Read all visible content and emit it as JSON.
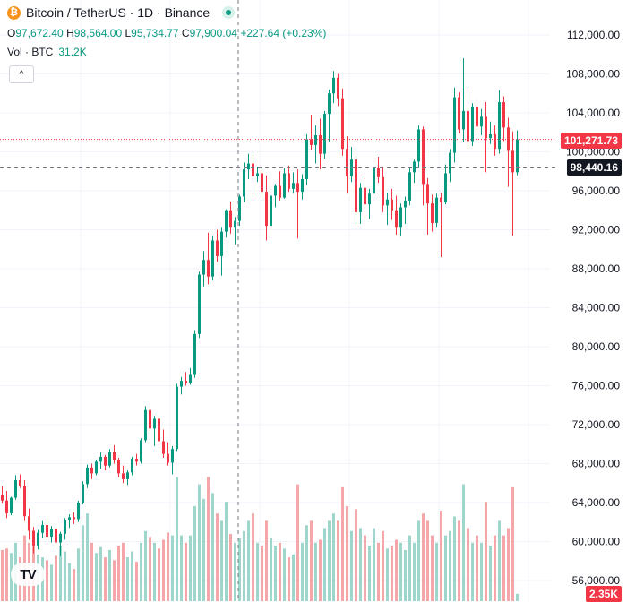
{
  "header": {
    "title": "Bitcoin / TetherUS · 1D · Binance",
    "coin_icon": "bitcoin-icon"
  },
  "ohlc": {
    "o_label": "O",
    "o": "97,672.40",
    "h_label": "H",
    "h": "98,564.00",
    "l_label": "L",
    "l": "95,734.77",
    "c_label": "C",
    "c": "97,900.04",
    "change": "+227.64 (+0.23%)"
  },
  "volume": {
    "label": "Vol · BTC",
    "value": "31.2K"
  },
  "collapse_icon": "chevron-up-icon",
  "logo": "TV",
  "colors": {
    "up": "#089981",
    "down": "#f23645",
    "up_vol": "#9fd6cc",
    "down_vol": "#f5a6a9",
    "grid": "#f0f3fa"
  },
  "price_tags": {
    "last_price": "101,271.73",
    "crosshair_price": "98,440.16",
    "volume": "2.35K"
  },
  "chart_data": {
    "type": "candlestick",
    "title": "Bitcoin / TetherUS · 1D · Binance",
    "y_ticks": [
      "112,000.00",
      "108,000.00",
      "104,000.00",
      "100,000.00",
      "96,000.00",
      "92,000.00",
      "88,000.00",
      "84,000.00",
      "80,000.00",
      "76,000.00",
      "72,000.00",
      "68,000.00",
      "64,000.00",
      "60,000.00",
      "56,000.00"
    ],
    "ylim": [
      55000,
      113000
    ],
    "last_price": 101271.73,
    "crosshair_price": 98440.16,
    "candles": [
      [
        64800,
        65700,
        63900,
        64200,
        0.35
      ],
      [
        64200,
        65200,
        62400,
        62900,
        0.36
      ],
      [
        62900,
        64600,
        62700,
        64500,
        0.33
      ],
      [
        64500,
        66800,
        64300,
        66300,
        0.4
      ],
      [
        66300,
        66900,
        65500,
        65700,
        0.3
      ],
      [
        65700,
        66300,
        62100,
        62600,
        0.45
      ],
      [
        62600,
        63400,
        60200,
        61100,
        0.4
      ],
      [
        61100,
        61500,
        58800,
        59600,
        0.48
      ],
      [
        59600,
        61200,
        59200,
        60900,
        0.32
      ],
      [
        60900,
        62100,
        60400,
        61700,
        0.3
      ],
      [
        61700,
        62400,
        60300,
        60500,
        0.28
      ],
      [
        60500,
        61600,
        59900,
        61300,
        0.25
      ],
      [
        61300,
        61500,
        59500,
        59900,
        0.31
      ],
      [
        59900,
        61000,
        58500,
        60800,
        0.38
      ],
      [
        60800,
        62400,
        60200,
        62200,
        0.34
      ],
      [
        62200,
        62800,
        61400,
        62500,
        0.26
      ],
      [
        62500,
        63000,
        61800,
        62300,
        0.22
      ],
      [
        62300,
        64200,
        62000,
        64000,
        0.36
      ],
      [
        64000,
        66200,
        63800,
        65900,
        0.52
      ],
      [
        65900,
        67900,
        65500,
        67600,
        0.6
      ],
      [
        67600,
        68000,
        66400,
        67000,
        0.4
      ],
      [
        67000,
        68400,
        66800,
        68200,
        0.33
      ],
      [
        68200,
        69200,
        67500,
        68700,
        0.37
      ],
      [
        68700,
        68900,
        67300,
        67800,
        0.3
      ],
      [
        67800,
        69500,
        67600,
        69200,
        0.35
      ],
      [
        69200,
        69900,
        68000,
        68400,
        0.28
      ],
      [
        68400,
        68600,
        66600,
        67000,
        0.38
      ],
      [
        67000,
        67800,
        66000,
        66400,
        0.4
      ],
      [
        66400,
        67300,
        65800,
        67100,
        0.3
      ],
      [
        67100,
        68700,
        66800,
        68500,
        0.34
      ],
      [
        68500,
        69000,
        67800,
        68200,
        0.27
      ],
      [
        68200,
        70600,
        68000,
        70400,
        0.4
      ],
      [
        70400,
        73900,
        70200,
        73500,
        0.48
      ],
      [
        73500,
        73800,
        71300,
        71600,
        0.44
      ],
      [
        71600,
        72900,
        69800,
        72600,
        0.4
      ],
      [
        72600,
        72800,
        69900,
        70300,
        0.36
      ],
      [
        70300,
        71500,
        68600,
        69000,
        0.42
      ],
      [
        69000,
        70200,
        67800,
        68100,
        0.47
      ],
      [
        68100,
        69800,
        66900,
        69500,
        0.45
      ],
      [
        69500,
        76200,
        69300,
        75900,
        0.85
      ],
      [
        75900,
        76900,
        75100,
        76500,
        0.45
      ],
      [
        76500,
        77400,
        76000,
        76300,
        0.4
      ],
      [
        76300,
        77800,
        76100,
        77100,
        0.45
      ],
      [
        77100,
        81700,
        76800,
        81300,
        0.65
      ],
      [
        81300,
        87700,
        80900,
        87400,
        0.8
      ],
      [
        87400,
        89800,
        86200,
        88900,
        0.7
      ],
      [
        88900,
        91700,
        86400,
        87200,
        0.85
      ],
      [
        87200,
        91400,
        86800,
        90900,
        0.74
      ],
      [
        90900,
        92000,
        88700,
        89300,
        0.6
      ],
      [
        89300,
        92300,
        87300,
        91800,
        0.55
      ],
      [
        91800,
        94100,
        91200,
        94000,
        0.68
      ],
      [
        94000,
        94900,
        91600,
        92300,
        0.46
      ],
      [
        92300,
        93300,
        90500,
        92900,
        0.4
      ],
      [
        92900,
        95600,
        92400,
        95400,
        0.43
      ],
      [
        95400,
        98900,
        94800,
        98200,
        0.48
      ],
      [
        98200,
        99800,
        97200,
        98800,
        0.55
      ],
      [
        98800,
        99700,
        95600,
        97500,
        0.6
      ],
      [
        97500,
        98500,
        96900,
        97800,
        0.4
      ],
      [
        97800,
        98200,
        95300,
        95900,
        0.38
      ],
      [
        95900,
        97600,
        90900,
        92400,
        0.55
      ],
      [
        92400,
        95800,
        91100,
        95500,
        0.43
      ],
      [
        95500,
        96700,
        94300,
        96500,
        0.38
      ],
      [
        96500,
        98000,
        95000,
        95300,
        0.4
      ],
      [
        95300,
        98300,
        95200,
        97800,
        0.36
      ],
      [
        97800,
        98600,
        95900,
        96200,
        0.3
      ],
      [
        96200,
        97900,
        95700,
        96800,
        0.32
      ],
      [
        96800,
        98200,
        91100,
        95900,
        0.8
      ],
      [
        95900,
        97700,
        95100,
        97200,
        0.4
      ],
      [
        97200,
        101800,
        96600,
        101300,
        0.52
      ],
      [
        101300,
        103800,
        100200,
        100700,
        0.55
      ],
      [
        100700,
        102700,
        98800,
        101700,
        0.4
      ],
      [
        101700,
        103400,
        98200,
        99800,
        0.42
      ],
      [
        99800,
        104200,
        99300,
        103900,
        0.5
      ],
      [
        103900,
        106400,
        101000,
        106000,
        0.55
      ],
      [
        106000,
        108300,
        105000,
        107600,
        0.6
      ],
      [
        107600,
        108000,
        104700,
        105500,
        0.55
      ],
      [
        105500,
        106500,
        99600,
        100300,
        0.78
      ],
      [
        100300,
        101600,
        95700,
        97500,
        0.65
      ],
      [
        97500,
        100500,
        96900,
        99200,
        0.48
      ],
      [
        99200,
        99600,
        92600,
        93800,
        0.63
      ],
      [
        93800,
        96800,
        92600,
        96300,
        0.5
      ],
      [
        96300,
        97300,
        93200,
        94600,
        0.45
      ],
      [
        94600,
        96200,
        93100,
        95700,
        0.38
      ],
      [
        95700,
        98800,
        95100,
        98400,
        0.5
      ],
      [
        98400,
        99500,
        96800,
        97400,
        0.4
      ],
      [
        97400,
        98500,
        93800,
        94500,
        0.48
      ],
      [
        94500,
        95800,
        92500,
        95100,
        0.36
      ],
      [
        95100,
        96200,
        93000,
        94000,
        0.38
      ],
      [
        94000,
        95500,
        91500,
        92300,
        0.42
      ],
      [
        92300,
        94700,
        91300,
        94300,
        0.4
      ],
      [
        94300,
        95400,
        92600,
        95000,
        0.35
      ],
      [
        95000,
        98300,
        94500,
        97900,
        0.45
      ],
      [
        97900,
        99200,
        96800,
        99000,
        0.4
      ],
      [
        99000,
        102700,
        98400,
        102300,
        0.55
      ],
      [
        102300,
        102600,
        94500,
        96700,
        0.6
      ],
      [
        96700,
        97300,
        91500,
        94700,
        0.55
      ],
      [
        94700,
        95600,
        91800,
        92700,
        0.45
      ],
      [
        92700,
        95700,
        92300,
        95300,
        0.4
      ],
      [
        95300,
        95800,
        89200,
        94800,
        0.62
      ],
      [
        94800,
        98700,
        94600,
        97800,
        0.45
      ],
      [
        97800,
        100300,
        96900,
        99900,
        0.48
      ],
      [
        99900,
        106600,
        98900,
        105600,
        0.58
      ],
      [
        105600,
        106100,
        101900,
        102300,
        0.55
      ],
      [
        102300,
        109600,
        101000,
        104200,
        0.8
      ],
      [
        104200,
        106700,
        100300,
        101100,
        0.5
      ],
      [
        101100,
        105000,
        100600,
        104600,
        0.4
      ],
      [
        104600,
        105300,
        102000,
        102600,
        0.45
      ],
      [
        102600,
        104400,
        101700,
        103600,
        0.4
      ],
      [
        103600,
        105100,
        97900,
        101400,
        0.68
      ],
      [
        101400,
        103100,
        100800,
        101800,
        0.38
      ],
      [
        101800,
        102700,
        99600,
        100300,
        0.45
      ],
      [
        100300,
        106300,
        99800,
        105100,
        0.55
      ],
      [
        105100,
        105700,
        101100,
        102500,
        0.45
      ],
      [
        102500,
        103500,
        96400,
        100100,
        0.5
      ],
      [
        100100,
        102100,
        91400,
        97900,
        0.78
      ],
      [
        97900,
        102200,
        97600,
        101272,
        0.05
      ]
    ]
  }
}
